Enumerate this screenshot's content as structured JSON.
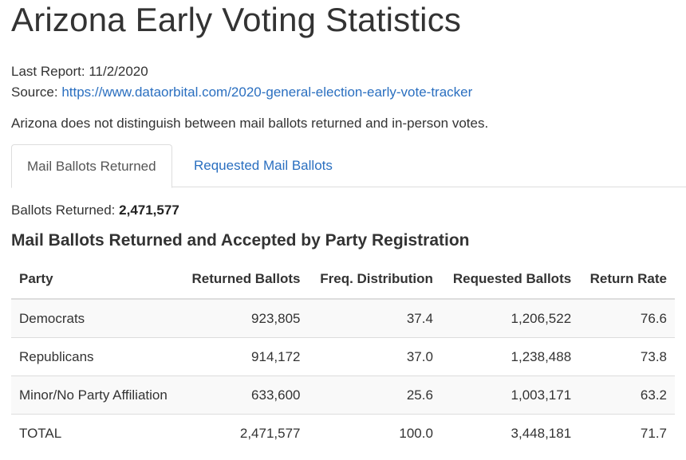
{
  "page": {
    "title": "Arizona Early Voting Statistics",
    "last_report_label": "Last Report:",
    "last_report_value": "11/2/2020",
    "source_label": "Source:",
    "source_link": "https://www.dataorbital.com/2020-general-election-early-vote-tracker",
    "note": "Arizona does not distinguish between mail ballots returned and in-person votes."
  },
  "tabs": [
    {
      "label": "Mail Ballots Returned",
      "active": true
    },
    {
      "label": "Requested Mail Ballots",
      "active": false
    }
  ],
  "summary": {
    "label": "Ballots Returned:",
    "value": "2,471,577"
  },
  "table": {
    "title": "Mail Ballots Returned and Accepted by Party Registration",
    "headers": [
      "Party",
      "Returned Ballots",
      "Freq. Distribution",
      "Requested Ballots",
      "Return Rate"
    ],
    "rows": [
      [
        "Democrats",
        "923,805",
        "37.4",
        "1,206,522",
        "76.6"
      ],
      [
        "Republicans",
        "914,172",
        "37.0",
        "1,238,488",
        "73.8"
      ],
      [
        "Minor/No Party Affiliation",
        "633,600",
        "25.6",
        "1,003,171",
        "63.2"
      ],
      [
        "TOTAL",
        "2,471,577",
        "100.0",
        "3,448,181",
        "71.7"
      ]
    ]
  },
  "colors": {
    "link": "#2a6fc0",
    "text": "#333333",
    "border": "#dddddd",
    "stripe": "#f9f9f9"
  }
}
